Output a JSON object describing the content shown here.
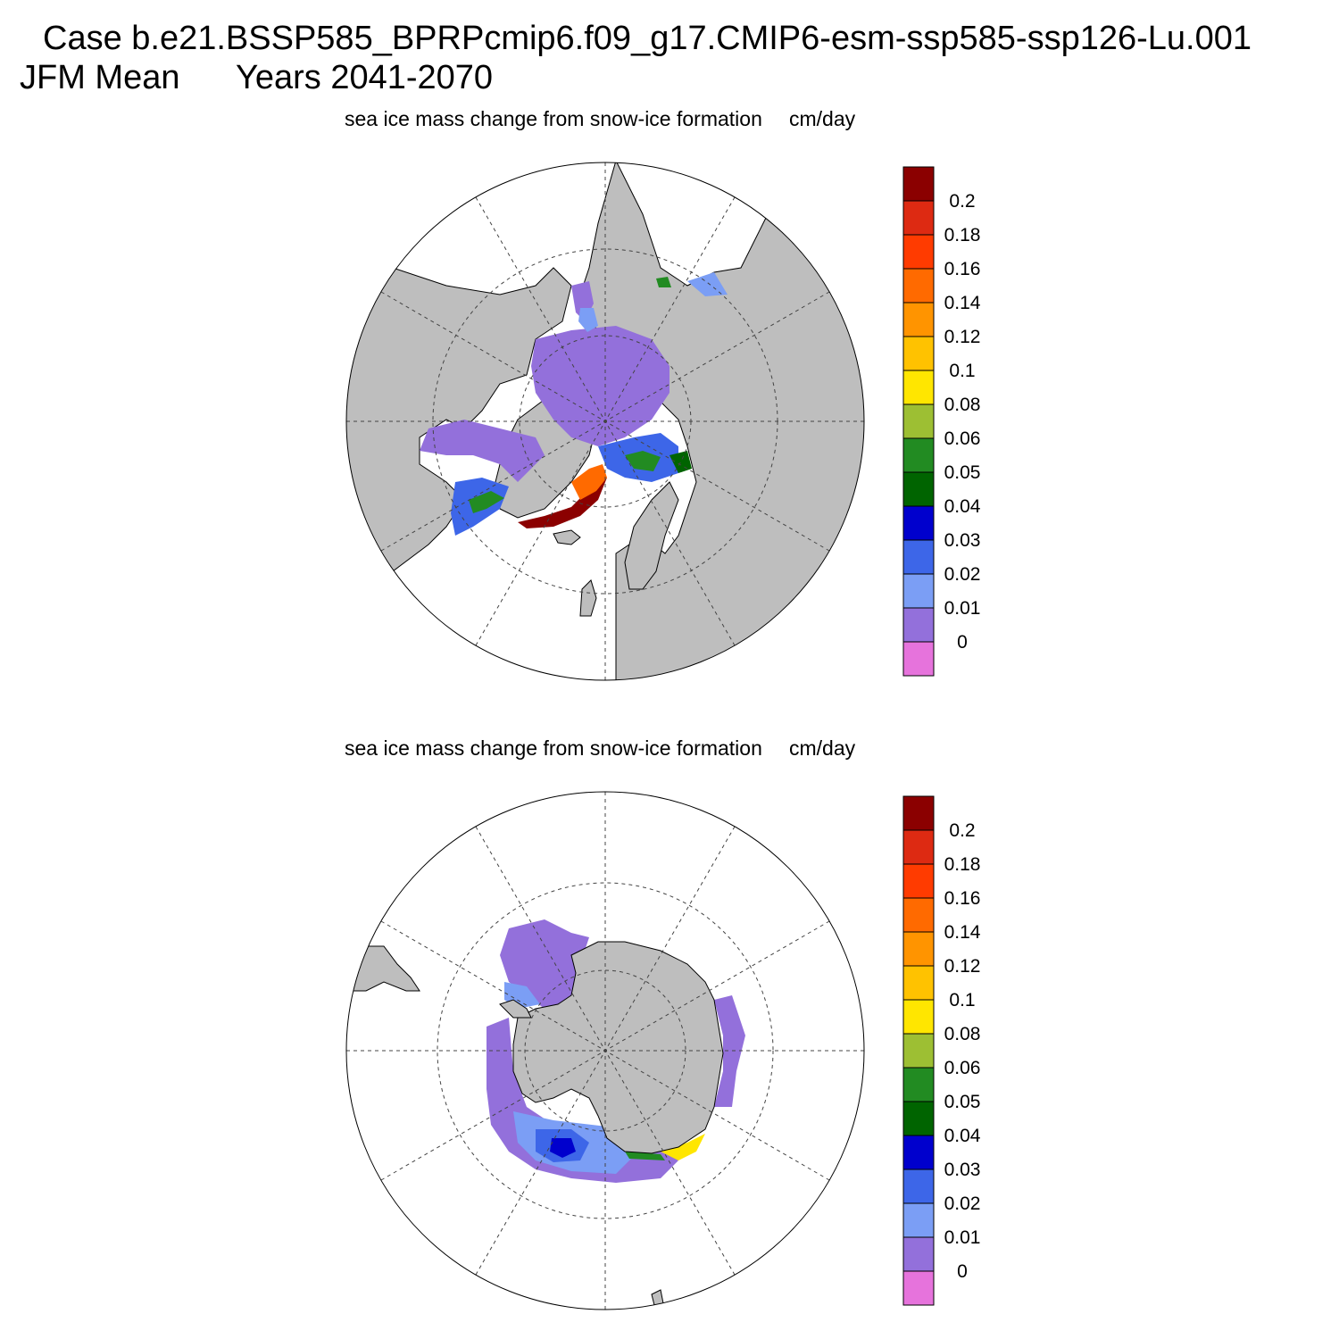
{
  "header": {
    "case_line": "Case b.e21.BSSP585_BPRPcmip6.f09_g17.CMIP6-esm-ssp585-ssp126-Lu.001",
    "season": "JFM Mean",
    "years": "Years 2041-2070"
  },
  "panels": [
    {
      "hemisphere": "north",
      "title": "sea ice mass change from snow-ice formation",
      "units": "cm/day"
    },
    {
      "hemisphere": "south",
      "title": "sea ice mass change from snow-ice formation",
      "units": "cm/day"
    }
  ],
  "colorbar": {
    "labels": [
      "0.2",
      "0.18",
      "0.16",
      "0.14",
      "0.12",
      "0.1",
      "0.08",
      "0.06",
      "0.05",
      "0.04",
      "0.03",
      "0.02",
      "0.01",
      "0"
    ],
    "colors": [
      "#8b0000",
      "#dd2a12",
      "#ff3b00",
      "#ff6a00",
      "#ff9400",
      "#ffc200",
      "#ffe600",
      "#9dbf33",
      "#228b22",
      "#006400",
      "#0000cd",
      "#3d66e8",
      "#7b9ef5",
      "#9370db",
      "#e673dc"
    ]
  },
  "colors": {
    "land": "#bebebe",
    "ocean": "#ffffff"
  }
}
